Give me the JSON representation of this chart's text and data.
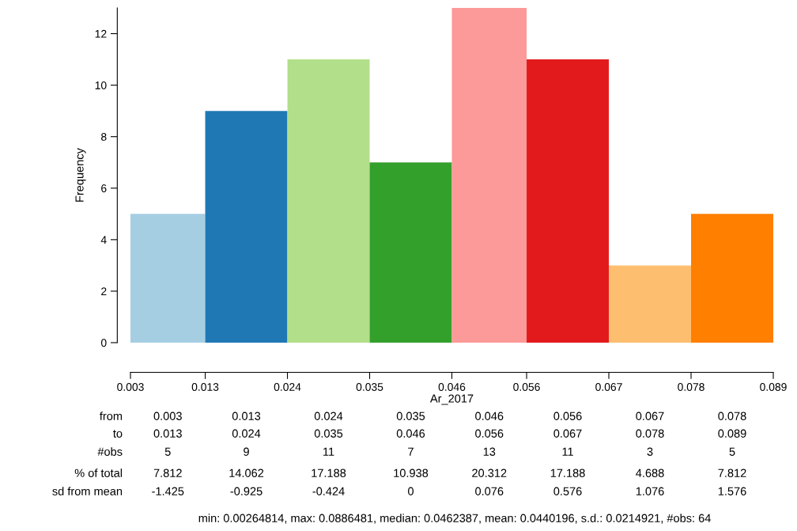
{
  "chart_data": {
    "type": "histogram",
    "xlabel": "Ar_2017",
    "ylabel": "Frequency",
    "bins": [
      0.003,
      0.013,
      0.024,
      0.035,
      0.046,
      0.056,
      0.067,
      0.078,
      0.089
    ],
    "values": [
      5,
      9,
      11,
      7,
      13,
      11,
      3,
      5
    ],
    "colors": [
      "#a6cee3",
      "#1f78b4",
      "#b2df8a",
      "#33a02c",
      "#fb9a99",
      "#e31a1c",
      "#fdbf6f",
      "#ff7f00"
    ],
    "xlim": [
      0.003,
      0.089
    ],
    "ylim": [
      0,
      13
    ],
    "xticks": [
      0.003,
      0.013,
      0.024,
      0.035,
      0.046,
      0.056,
      0.067,
      0.078,
      0.089
    ],
    "yticks": [
      0,
      2,
      4,
      6,
      8,
      10,
      12
    ],
    "annotations": [
      "from",
      "0.003",
      "0.013",
      "0.024",
      "0.035",
      "0.046",
      "0.056",
      "0.067",
      "0.078",
      "to",
      "0.013",
      "0.024",
      "0.035",
      "0.046",
      "0.056",
      "0.067",
      "0.078",
      "0.089",
      "#obs",
      "5",
      "9",
      "11",
      "7",
      "13",
      "11",
      "3",
      "5",
      "% of total",
      "7.812",
      "14.062",
      "17.188",
      "10.938",
      "20.312",
      "17.188",
      "4.688",
      "7.812",
      "sd from mean",
      "-1.425",
      "-0.925",
      "-0.424",
      "0",
      "0.076",
      "0.576",
      "1.076",
      "1.576",
      "min: 0.00264814, max: 0.0886481, median: 0.0462387, mean: 0.0440196, s.d.: 0.0214921, #obs: 64"
    ]
  }
}
